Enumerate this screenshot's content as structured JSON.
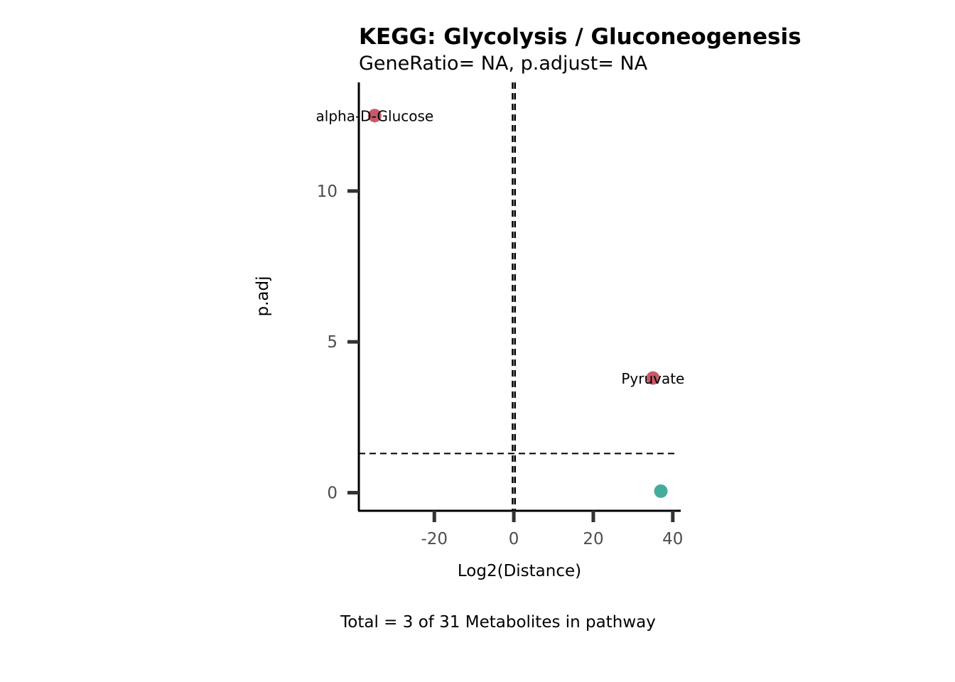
{
  "chart_data": {
    "type": "scatter",
    "title": "KEGG: Glycolysis / Gluconeogenesis",
    "subtitle": "GeneRatio= NA, p.adjust= NA",
    "xlabel": "Log2(Distance)",
    "ylabel": "p.adj",
    "caption": "Total = 3 of 31 Metabolites in pathway",
    "xlim": [
      -39,
      42
    ],
    "ylim": [
      -0.6,
      13.6
    ],
    "x_ticks": [
      -20,
      0,
      20,
      40
    ],
    "y_ticks": [
      0,
      5,
      10
    ],
    "grid": false,
    "legend": "none",
    "reference_lines": {
      "vertical_x": [
        -0.3,
        0.3
      ],
      "horizontal_y": 1.3
    },
    "colors": {
      "significant": "#c75a6a",
      "not_significant": "#45ab9a"
    },
    "points": [
      {
        "label": "alpha-D-Glucose",
        "x": -35,
        "y": 12.5,
        "color_key": "significant"
      },
      {
        "label": "Pyruvate",
        "x": 35,
        "y": 3.8,
        "color_key": "significant"
      },
      {
        "label": "",
        "x": 37,
        "y": 0.05,
        "color_key": "not_significant"
      }
    ]
  }
}
